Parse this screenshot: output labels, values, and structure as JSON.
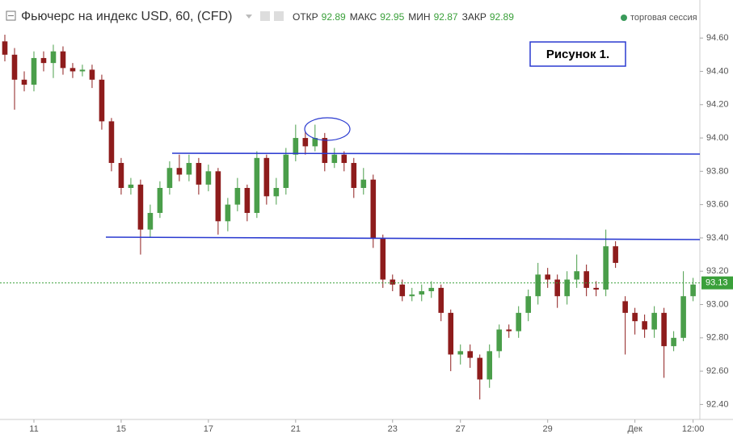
{
  "chart_data": {
    "type": "candlestick",
    "title": "Фьючерс на индекс USD, 60, (CFD)",
    "stats": [
      {
        "label": "ОТКР",
        "value": 92.89
      },
      {
        "label": "МАКС",
        "value": 92.95
      },
      {
        "label": "МИН",
        "value": 92.87
      },
      {
        "label": "ЗАКР",
        "value": 92.89
      }
    ],
    "session_label": "торговая сессия",
    "annotation": "Рисунок 1.",
    "last_price": {
      "value": 93.13,
      "label": "93.13"
    },
    "up_color": "#4a9e4a",
    "down_color": "#8e1c1c",
    "open": [
      94.58,
      94.5,
      94.35,
      94.32,
      94.48,
      94.45,
      94.52,
      94.42,
      94.4,
      94.41,
      94.35,
      94.1,
      93.85,
      93.7,
      93.72,
      93.45,
      93.55,
      93.7,
      93.82,
      93.78,
      93.85,
      93.72,
      93.8,
      93.5,
      93.6,
      93.7,
      93.55,
      93.88,
      93.65,
      93.7,
      93.9,
      94.0,
      93.95,
      94.0,
      93.85,
      93.9,
      93.85,
      93.7,
      93.75,
      93.4,
      93.15,
      93.12,
      93.05,
      93.06,
      93.08,
      93.1,
      92.95,
      92.7,
      92.72,
      92.68,
      92.55,
      92.72,
      92.85,
      92.84,
      92.95,
      93.05,
      93.18,
      93.15,
      93.05,
      93.15,
      93.2,
      93.1,
      93.09,
      93.35,
      93.02,
      92.95,
      92.9,
      92.85,
      92.95,
      92.75,
      92.8,
      93.05
    ],
    "high": [
      94.62,
      94.54,
      94.4,
      94.52,
      94.52,
      94.56,
      94.55,
      94.45,
      94.44,
      94.44,
      94.38,
      94.12,
      93.88,
      93.76,
      93.75,
      93.6,
      93.74,
      93.86,
      93.9,
      93.9,
      93.88,
      93.84,
      93.82,
      93.64,
      93.76,
      93.72,
      93.92,
      93.9,
      93.76,
      93.94,
      94.08,
      94.04,
      94.08,
      94.03,
      93.94,
      93.92,
      93.88,
      93.82,
      93.78,
      93.42,
      93.18,
      93.15,
      93.1,
      93.12,
      93.14,
      93.12,
      92.97,
      92.76,
      92.76,
      92.7,
      92.76,
      92.88,
      92.88,
      92.99,
      93.09,
      93.25,
      93.22,
      93.18,
      93.2,
      93.3,
      93.24,
      93.14,
      93.45,
      93.38,
      93.05,
      92.98,
      92.94,
      92.99,
      92.98,
      92.84,
      93.2,
      93.16
    ],
    "low": [
      94.46,
      94.17,
      94.28,
      94.28,
      94.4,
      94.36,
      94.38,
      94.36,
      94.37,
      94.3,
      94.05,
      93.8,
      93.66,
      93.66,
      93.3,
      93.4,
      93.52,
      93.66,
      93.74,
      93.74,
      93.66,
      93.68,
      93.42,
      93.44,
      93.56,
      93.5,
      93.52,
      93.6,
      93.6,
      93.66,
      93.86,
      93.9,
      93.92,
      93.8,
      93.82,
      93.8,
      93.64,
      93.66,
      93.34,
      93.1,
      93.08,
      93.02,
      93.02,
      93.02,
      93.04,
      92.9,
      92.6,
      92.64,
      92.62,
      92.43,
      92.5,
      92.68,
      92.8,
      92.8,
      92.9,
      93.0,
      93.1,
      92.98,
      93.0,
      93.1,
      93.05,
      93.05,
      93.05,
      93.22,
      92.7,
      92.82,
      92.8,
      92.8,
      92.56,
      92.72,
      92.78,
      93.02
    ],
    "close": [
      94.5,
      94.35,
      94.32,
      94.48,
      94.45,
      94.52,
      94.42,
      94.4,
      94.41,
      94.35,
      94.1,
      93.85,
      93.7,
      93.72,
      93.45,
      93.55,
      93.7,
      93.82,
      93.78,
      93.85,
      93.72,
      93.8,
      93.5,
      93.6,
      93.7,
      93.55,
      93.88,
      93.65,
      93.7,
      93.9,
      94.0,
      93.95,
      94.0,
      93.85,
      93.9,
      93.85,
      93.7,
      93.75,
      93.4,
      93.15,
      93.12,
      93.05,
      93.06,
      93.08,
      93.1,
      92.95,
      92.7,
      92.72,
      92.68,
      92.55,
      92.72,
      92.85,
      92.84,
      92.95,
      93.05,
      93.18,
      93.15,
      93.05,
      93.15,
      93.2,
      93.1,
      93.09,
      93.35,
      93.25,
      92.95,
      92.9,
      92.85,
      92.95,
      92.75,
      92.8,
      93.05,
      93.12
    ],
    "xlim": [
      -0.5,
      71.7
    ],
    "xticks": [
      {
        "value": 3,
        "label": "11"
      },
      {
        "value": 12,
        "label": "15"
      },
      {
        "value": 21,
        "label": "17"
      },
      {
        "value": 30,
        "label": "21"
      },
      {
        "value": 40,
        "label": "23"
      },
      {
        "value": 47,
        "label": "27"
      },
      {
        "value": 56,
        "label": "29"
      },
      {
        "value": 65,
        "label": "Дек"
      },
      {
        "value": 71,
        "label": "12:00"
      }
    ],
    "ylim": [
      92.31,
      94.78
    ],
    "yticks": [
      {
        "value": 92.4,
        "label": "92.40"
      },
      {
        "value": 92.6,
        "label": "92.60"
      },
      {
        "value": 92.8,
        "label": "92.80"
      },
      {
        "value": 93,
        "label": "93.00"
      },
      {
        "value": 93.2,
        "label": "93.20"
      },
      {
        "value": 93.4,
        "label": "93.40"
      },
      {
        "value": 93.6,
        "label": "93.60"
      },
      {
        "value": 93.8,
        "label": "93.80"
      },
      {
        "value": 94,
        "label": "94.00"
      },
      {
        "value": 94.2,
        "label": "94.20"
      },
      {
        "value": 94.4,
        "label": "94.40"
      },
      {
        "value": 94.6,
        "label": "94.60"
      }
    ]
  }
}
